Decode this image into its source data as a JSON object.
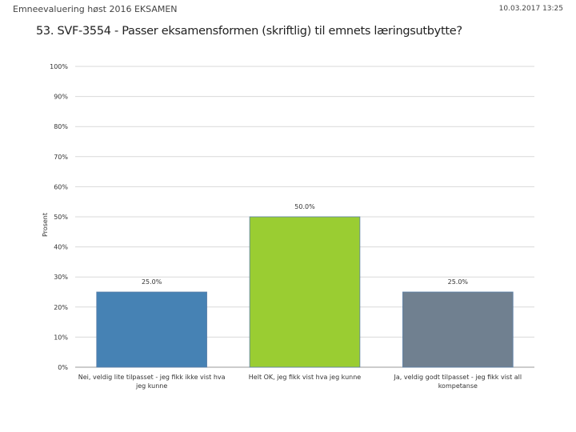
{
  "header": {
    "survey_title": "Emneevaluering høst 2016 EKSAMEN",
    "timestamp": "10.03.2017 13:25"
  },
  "question": {
    "title": "53. SVF-3554 - Passer eksamensformen (skriftlig) til emnets læringsutbytte?"
  },
  "chart_data": {
    "type": "bar",
    "title": "53. SVF-3554 - Passer eksamensformen (skriftlig) til emnets læringsutbytte?",
    "xlabel": "",
    "ylabel": "Prosent",
    "ylim": [
      0,
      100
    ],
    "yticks": [
      "0%",
      "10%",
      "20%",
      "30%",
      "40%",
      "50%",
      "60%",
      "70%",
      "80%",
      "90%",
      "100%"
    ],
    "grid": true,
    "legend": "none",
    "categories": [
      "Nei, veldig lite tilpasset - jeg fikk ikke vist hva jeg kunne",
      "Helt OK, jeg fikk vist hva jeg kunne",
      "Ja, veldig godt tilpasset - jeg fikk vist all kompetanse"
    ],
    "category_lines": [
      [
        "Nei, veldig lite tilpasset - jeg fikk ikke vist hva",
        "jeg kunne"
      ],
      [
        "Helt OK, jeg fikk vist hva jeg kunne"
      ],
      [
        "Ja, veldig godt tilpasset - jeg fikk vist all",
        "kompetanse"
      ]
    ],
    "values": [
      25.0,
      50.0,
      25.0
    ],
    "data_labels": [
      "25.0%",
      "50.0%",
      "25.0%"
    ],
    "colors": [
      "#4682B4",
      "#9ACD32",
      "#708090"
    ]
  }
}
